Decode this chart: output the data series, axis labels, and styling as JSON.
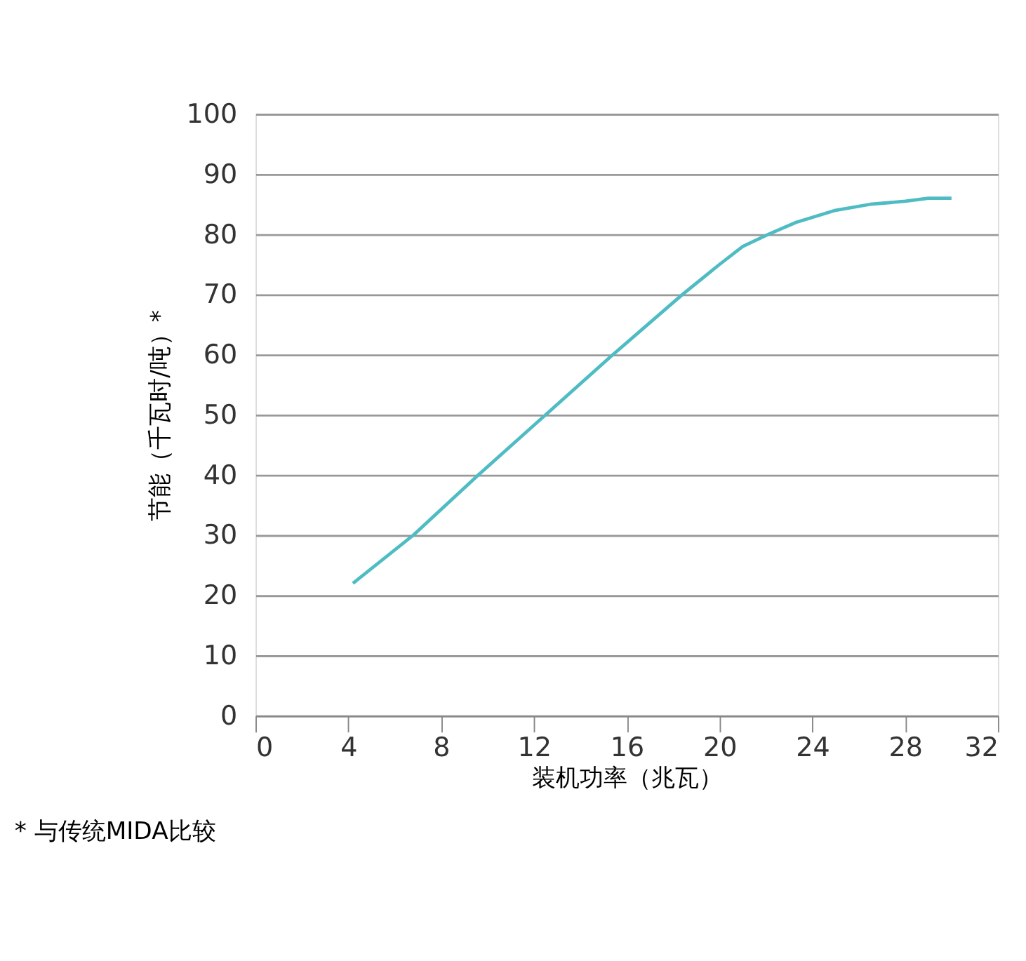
{
  "chart_data": {
    "type": "line",
    "xlabel": "装机功率（兆瓦）",
    "ylabel": "节能（千瓦时/吨）*",
    "annotations": [
      "* 与传统MIDA比较"
    ],
    "x": [
      4.2,
      6.8,
      9.6,
      12.5,
      15.4,
      18.4,
      20,
      21,
      22.1,
      23.3,
      25,
      26.5,
      28,
      29,
      30
    ],
    "series": [
      {
        "color": "#4fbcc4",
        "values": [
          22,
          30,
          40,
          50,
          60,
          70,
          75,
          78,
          80,
          82,
          84,
          85,
          85.5,
          86,
          86
        ]
      }
    ],
    "xlim": [
      0,
      32
    ],
    "xticks": [
      0,
      4,
      8,
      12,
      16,
      20,
      24,
      28,
      32
    ],
    "ylim": [
      0,
      100
    ],
    "yticks": [
      0,
      10,
      20,
      30,
      40,
      50,
      60,
      70,
      80,
      90,
      100
    ],
    "grid": "y",
    "marker": "none",
    "line_style": "solid"
  }
}
